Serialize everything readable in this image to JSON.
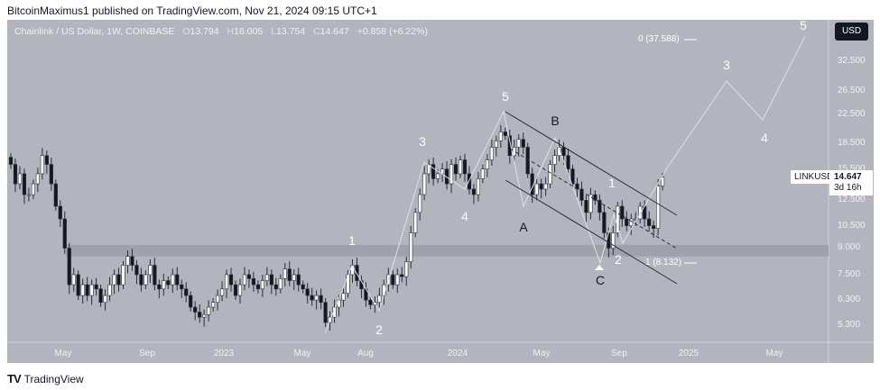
{
  "publisher_line": "BitcoinMaximus1 published on TradingView.com, Nov 21, 2024 09:15 UTC+1",
  "legend": {
    "symbol": "Chainlink / US Dollar, 1W, COINBASE",
    "o_label": "O",
    "o": "13.794",
    "h_label": "H",
    "h": "16.005",
    "l_label": "L",
    "l": "13.754",
    "c_label": "C",
    "c": "14.647",
    "change": "+0.858 (+6.22%)"
  },
  "currency_button": "USD",
  "price_axis": [
    "32.500",
    "26.500",
    "22.500",
    "18.500",
    "15.500",
    "12.500",
    "10.500",
    "9.000",
    "7.500",
    "6.300",
    "5.300"
  ],
  "time_axis": [
    "May",
    "Sep",
    "2023",
    "May",
    "Aug",
    "2024",
    "May",
    "Sep",
    "2025",
    "May"
  ],
  "price_tag": {
    "symbol": "LINKUSD",
    "price": "14.647",
    "countdown": "3d 16h"
  },
  "waves": {
    "w1": "1",
    "w2": "2",
    "w3": "3",
    "w4": "4",
    "w5": "5",
    "a": "A",
    "b": "B",
    "c": "C",
    "n1": "1",
    "n2": "2",
    "n3": "3",
    "n4": "4",
    "n5": "5"
  },
  "fib": {
    "top": "0 (37.588)",
    "bottom": "1 (8.132)"
  },
  "footer_brand": "TradingView",
  "colors": {
    "background": "#b2b5be",
    "up": "#ffffff",
    "down": "#131722"
  },
  "chart_data": {
    "type": "candlestick",
    "title": "Chainlink / US Dollar, 1W, COINBASE",
    "scale": "log",
    "ylim": [
      4.8,
      40
    ],
    "closes": [
      16,
      14,
      15,
      13,
      13,
      14,
      15,
      17,
      16,
      14,
      12,
      11,
      9,
      7,
      7.5,
      6.5,
      7,
      6.5,
      7,
      6.8,
      6.2,
      6.5,
      7,
      7.5,
      7,
      8,
      8.5,
      8,
      7.5,
      7,
      7.5,
      8,
      7,
      6.8,
      7.2,
      7,
      7.5,
      7,
      6.8,
      6.5,
      6,
      5.8,
      5.6,
      5.7,
      6,
      6.2,
      6.5,
      6.8,
      7.5,
      7,
      6.5,
      7,
      7.5,
      7.3,
      7,
      6.8,
      7.2,
      7.5,
      7,
      6.8,
      7.3,
      7.8,
      7.2,
      7.5,
      7,
      6.8,
      6.5,
      6.3,
      6.5,
      6.2,
      5.4,
      5.6,
      6,
      6.3,
      6.6,
      7.5,
      8,
      7.2,
      6.8,
      6.3,
      6.1,
      6.2,
      6.5,
      7,
      7.5,
      7,
      7.5,
      7.4,
      8.2,
      10,
      11.5,
      13,
      15,
      16,
      14.5,
      15,
      15.5,
      14,
      16,
      15,
      16.5,
      15,
      13.5,
      13,
      14.5,
      15.5,
      16.5,
      18,
      18.8,
      20,
      19.5,
      17,
      18,
      19,
      18,
      15,
      13,
      14,
      13.5,
      14,
      16,
      17,
      18,
      17,
      15.5,
      14,
      13.5,
      12.5,
      11.5,
      13,
      12.5,
      11.5,
      10,
      9,
      10,
      12,
      11,
      10.5,
      11,
      11,
      12,
      11,
      10.5,
      10.3,
      13.794,
      14.647
    ],
    "support_zone": [
      8.5,
      9.2
    ]
  }
}
